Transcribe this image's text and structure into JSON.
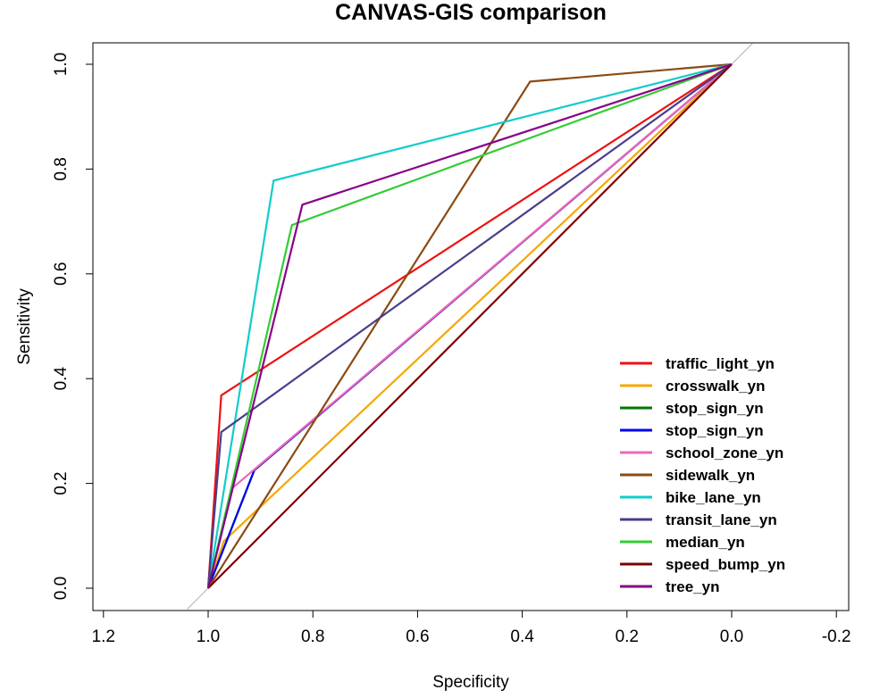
{
  "chart_data": {
    "type": "line",
    "title": "CANVAS-GIS comparison",
    "xlabel": "Specificity",
    "ylabel": "Sensitivity",
    "xlim": [
      1.2,
      -0.2
    ],
    "ylim": [
      0.0,
      1.0
    ],
    "x_reversed": true,
    "x_ticks": [
      "1.2",
      "1.0",
      "0.8",
      "0.6",
      "0.4",
      "0.2",
      "0.0",
      "-0.2"
    ],
    "y_ticks": [
      "0.0",
      "0.2",
      "0.4",
      "0.6",
      "0.8",
      "1.0"
    ],
    "grid": false,
    "legend_position": "bottom-right",
    "diagonal_reference_line": {
      "color": "#b0b0b0",
      "from": [
        1.04,
        -0.04
      ],
      "to": [
        -0.04,
        1.04
      ]
    },
    "series": [
      {
        "name": "traffic_light_yn",
        "color": "#ee1111",
        "x": [
          1.0,
          0.975,
          0.0
        ],
        "y": [
          0.0,
          0.368,
          1.0
        ]
      },
      {
        "name": "crosswalk_yn",
        "color": "#f5a700",
        "x": [
          1.0,
          0.97,
          0.0
        ],
        "y": [
          0.0,
          0.09,
          1.0
        ]
      },
      {
        "name": "stop_sign_yn",
        "color": "#007700",
        "x": [
          1.0,
          0.912,
          0.0
        ],
        "y": [
          0.0,
          0.225,
          1.0
        ]
      },
      {
        "name": "stop_sign_yn",
        "color": "#0000ee",
        "x": [
          1.0,
          0.912,
          0.0
        ],
        "y": [
          0.0,
          0.225,
          1.0
        ]
      },
      {
        "name": "school_zone_yn",
        "color": "#ee66bb",
        "x": [
          1.0,
          0.955,
          0.0
        ],
        "y": [
          0.0,
          0.19,
          1.0
        ]
      },
      {
        "name": "sidewalk_yn",
        "color": "#8b4a14",
        "x": [
          1.0,
          0.385,
          0.0
        ],
        "y": [
          0.0,
          0.967,
          1.0
        ]
      },
      {
        "name": "bike_lane_yn",
        "color": "#11cccc",
        "x": [
          1.0,
          0.875,
          0.0
        ],
        "y": [
          0.0,
          0.778,
          1.0
        ]
      },
      {
        "name": "transit_lane_yn",
        "color": "#483d8b",
        "x": [
          1.0,
          0.975,
          0.0
        ],
        "y": [
          0.0,
          0.298,
          1.0
        ]
      },
      {
        "name": "median_yn",
        "color": "#33cc33",
        "x": [
          1.0,
          0.84,
          0.0
        ],
        "y": [
          0.0,
          0.693,
          1.0
        ]
      },
      {
        "name": "speed_bump_yn",
        "color": "#7a0000",
        "x": [
          1.0,
          0.99,
          0.0
        ],
        "y": [
          0.0,
          0.01,
          1.0
        ]
      },
      {
        "name": "tree_yn",
        "color": "#880088",
        "x": [
          1.0,
          0.82,
          0.0
        ],
        "y": [
          0.0,
          0.732,
          1.0
        ]
      }
    ]
  }
}
